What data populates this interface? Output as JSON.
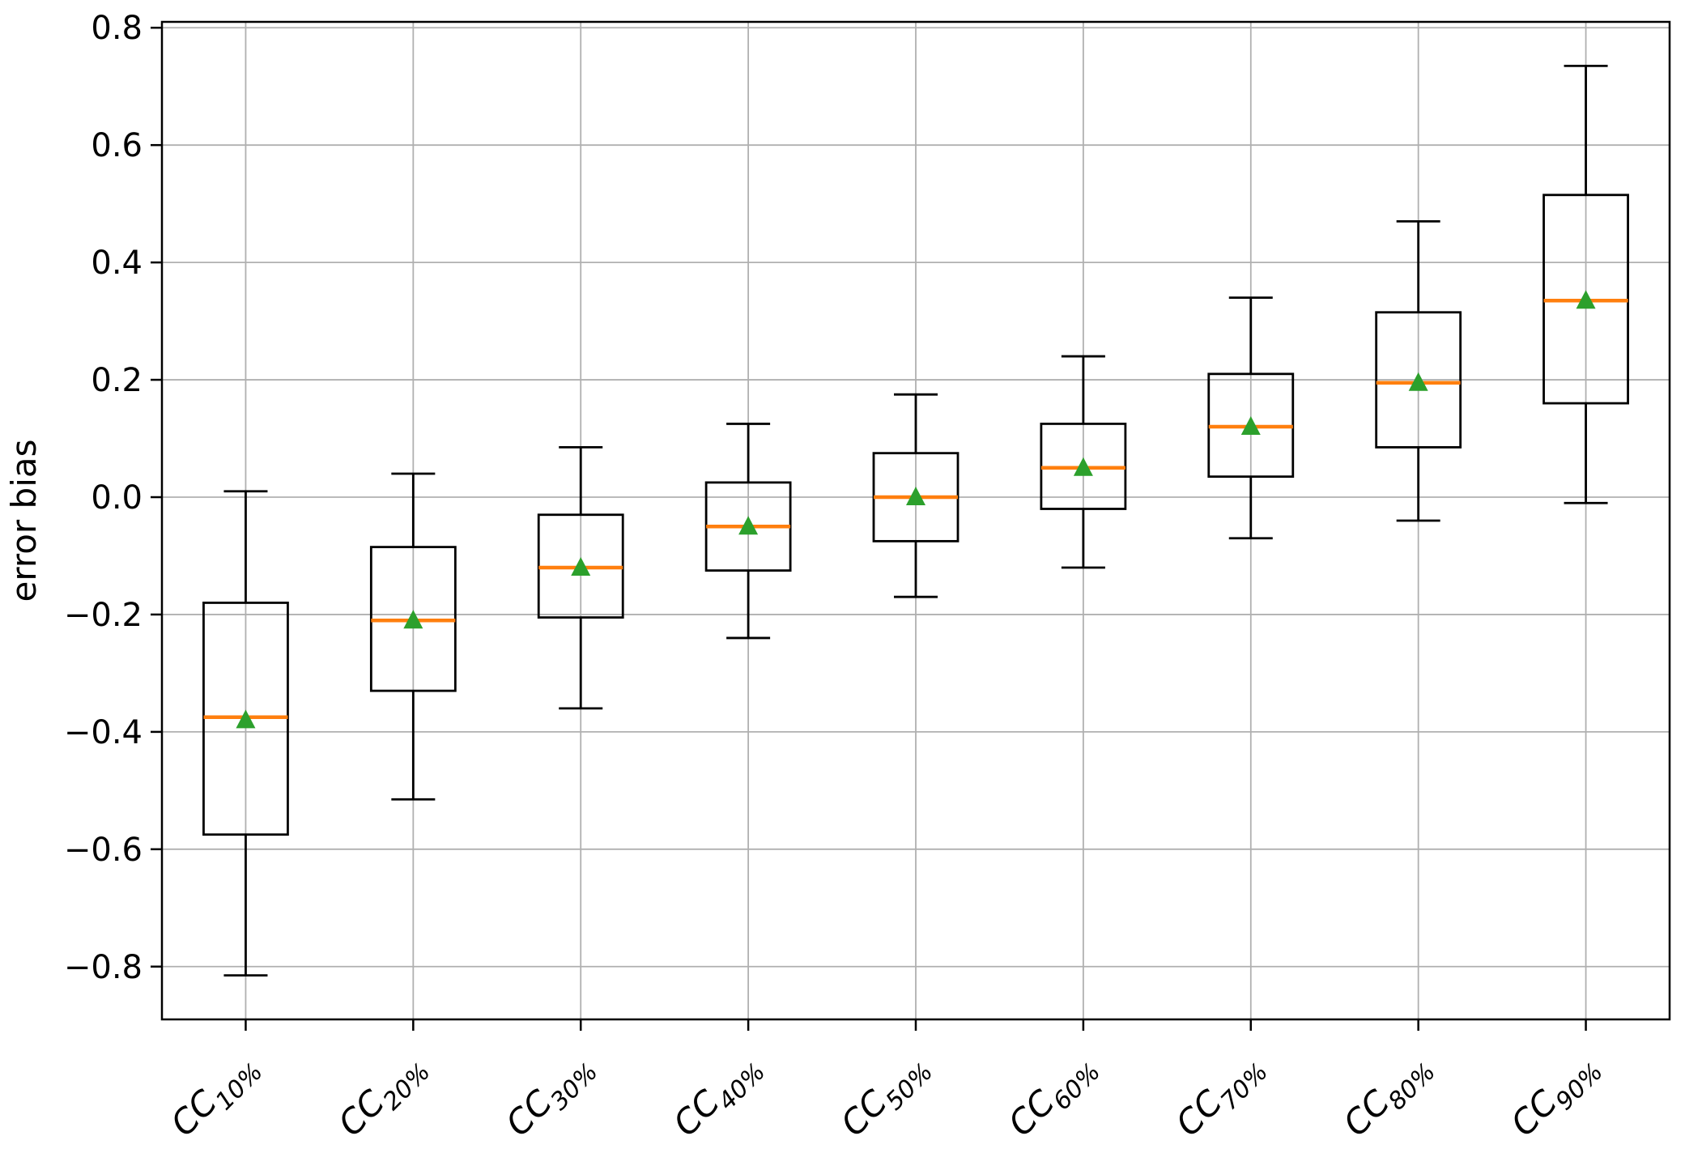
{
  "chart_data": {
    "type": "box",
    "title": "",
    "xlabel": "",
    "ylabel": "error bias",
    "ylim": [
      -0.89,
      0.81
    ],
    "yticks": [
      0.8,
      0.6,
      0.4,
      0.2,
      0.0,
      -0.2,
      -0.4,
      -0.6,
      -0.8
    ],
    "grid": true,
    "legend": "none",
    "categories": [
      {
        "label": "CC",
        "subscript": "10%"
      },
      {
        "label": "CC",
        "subscript": "20%"
      },
      {
        "label": "CC",
        "subscript": "30%"
      },
      {
        "label": "CC",
        "subscript": "40%"
      },
      {
        "label": "CC",
        "subscript": "50%"
      },
      {
        "label": "CC",
        "subscript": "60%"
      },
      {
        "label": "CC",
        "subscript": "70%"
      },
      {
        "label": "CC",
        "subscript": "80%"
      },
      {
        "label": "CC",
        "subscript": "90%"
      }
    ],
    "boxes": [
      {
        "whislo": -0.815,
        "q1": -0.575,
        "med": -0.375,
        "q3": -0.18,
        "whishi": 0.01,
        "mean": -0.38
      },
      {
        "whislo": -0.515,
        "q1": -0.33,
        "med": -0.21,
        "q3": -0.085,
        "whishi": 0.04,
        "mean": -0.21
      },
      {
        "whislo": -0.36,
        "q1": -0.205,
        "med": -0.12,
        "q3": -0.03,
        "whishi": 0.085,
        "mean": -0.12
      },
      {
        "whislo": -0.24,
        "q1": -0.125,
        "med": -0.05,
        "q3": 0.025,
        "whishi": 0.125,
        "mean": -0.05
      },
      {
        "whislo": -0.17,
        "q1": -0.075,
        "med": 0.0,
        "q3": 0.075,
        "whishi": 0.175,
        "mean": 0.0
      },
      {
        "whislo": -0.12,
        "q1": -0.02,
        "med": 0.05,
        "q3": 0.125,
        "whishi": 0.24,
        "mean": 0.05
      },
      {
        "whislo": -0.07,
        "q1": 0.035,
        "med": 0.12,
        "q3": 0.21,
        "whishi": 0.34,
        "mean": 0.12
      },
      {
        "whislo": -0.04,
        "q1": 0.085,
        "med": 0.195,
        "q3": 0.315,
        "whishi": 0.47,
        "mean": 0.195
      },
      {
        "whislo": -0.01,
        "q1": 0.16,
        "med": 0.335,
        "q3": 0.515,
        "whishi": 0.735,
        "mean": 0.335
      }
    ],
    "colors": {
      "median": "#ff7f0e",
      "mean_marker": "#2ca02c",
      "box_line": "#000000",
      "grid": "#b0b0b0",
      "spine": "#000000",
      "background": "#ffffff"
    }
  }
}
